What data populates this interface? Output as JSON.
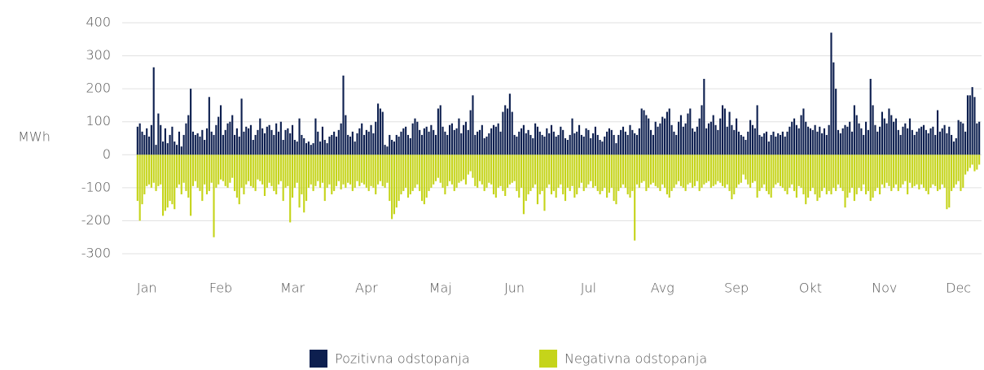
{
  "chart_data": {
    "type": "bar",
    "y_label": "MWh",
    "x": [
      1,
      2,
      3,
      4,
      5,
      6,
      7,
      8,
      9,
      10,
      11,
      12,
      13,
      14,
      15,
      16,
      17,
      18,
      19,
      20,
      21,
      22,
      23,
      24,
      25,
      26,
      27,
      28,
      29,
      30,
      31,
      32,
      33,
      34,
      35,
      36,
      37,
      38,
      39,
      40,
      41,
      42,
      43,
      44,
      45,
      46,
      47,
      48,
      49,
      50,
      51,
      52,
      53,
      54,
      55,
      56,
      57,
      58,
      59,
      60,
      61,
      62,
      63,
      64,
      65,
      66,
      67,
      68,
      69,
      70,
      71,
      72,
      73,
      74,
      75,
      76,
      77,
      78,
      79,
      80,
      81,
      82,
      83,
      84,
      85,
      86,
      87,
      88,
      89,
      90,
      91,
      92,
      93,
      94,
      95,
      96,
      97,
      98,
      99,
      100,
      101,
      102,
      103,
      104,
      105,
      106,
      107,
      108,
      109,
      110,
      111,
      112,
      113,
      114,
      115,
      116,
      117,
      118,
      119,
      120,
      121,
      122,
      123,
      124,
      125,
      126,
      127,
      128,
      129,
      130,
      131,
      132,
      133,
      134,
      135,
      136,
      137,
      138,
      139,
      140,
      141,
      142,
      143,
      144,
      145,
      146,
      147,
      148,
      149,
      150,
      151,
      152,
      153,
      154,
      155,
      156,
      157,
      158,
      159,
      160,
      161,
      162,
      163,
      164,
      165,
      166,
      167,
      168,
      169,
      170,
      171,
      172,
      173,
      174,
      175,
      176,
      177,
      178,
      179,
      180,
      181,
      182,
      183,
      184,
      185,
      186,
      187,
      188,
      189,
      190,
      191,
      192,
      193,
      194,
      195,
      196,
      197,
      198,
      199,
      200,
      201,
      202,
      203,
      204,
      205,
      206,
      207,
      208,
      209,
      210,
      211,
      212,
      213,
      214,
      215,
      216,
      217,
      218,
      219,
      220,
      221,
      222,
      223,
      224,
      225,
      226,
      227,
      228,
      229,
      230,
      231,
      232,
      233,
      234,
      235,
      236,
      237,
      238,
      239,
      240,
      241,
      242,
      243,
      244,
      245,
      246,
      247,
      248,
      249,
      250,
      251,
      252,
      253,
      254,
      255,
      256,
      257,
      258,
      259,
      260,
      261,
      262,
      263,
      264,
      265,
      266,
      267,
      268,
      269,
      270,
      271,
      272,
      273,
      274,
      275,
      276,
      277,
      278,
      279,
      280,
      281,
      282,
      283,
      284,
      285,
      286,
      287,
      288,
      289,
      290,
      291,
      292,
      293,
      294,
      295,
      296,
      297,
      298,
      299,
      300,
      301,
      302,
      303,
      304,
      305,
      306,
      307,
      308,
      309,
      310,
      311,
      312,
      313,
      314,
      315,
      316,
      317,
      318,
      319,
      320,
      321,
      322,
      323,
      324,
      325,
      326,
      327,
      328,
      329,
      330,
      331,
      332,
      333,
      334,
      335,
      336,
      337,
      338,
      339,
      340,
      341,
      342,
      343,
      344,
      345,
      346,
      347,
      348,
      349,
      350,
      351,
      352,
      353,
      354,
      355,
      356,
      357,
      358,
      359,
      360,
      361,
      362,
      363,
      364,
      365
    ],
    "xlim": [
      0,
      366
    ],
    "xticks": [
      {
        "value": 5,
        "label": "Jan"
      },
      {
        "value": 37,
        "label": "Feb"
      },
      {
        "value": 68,
        "label": "Mar"
      },
      {
        "value": 100,
        "label": "Apr"
      },
      {
        "value": 132,
        "label": "Maj"
      },
      {
        "value": 164,
        "label": "Jun"
      },
      {
        "value": 196,
        "label": "Jul"
      },
      {
        "value": 228,
        "label": "Avg"
      },
      {
        "value": 260,
        "label": "Sep"
      },
      {
        "value": 292,
        "label": "Okt"
      },
      {
        "value": 324,
        "label": "Nov"
      },
      {
        "value": 356,
        "label": "Dec"
      }
    ],
    "ylim": [
      -300,
      400
    ],
    "yticks": [
      400,
      300,
      200,
      100,
      0,
      -100,
      -200,
      -300
    ],
    "grid": true,
    "series": [
      {
        "name": "Pozitivna odstopanja",
        "color": "#0d1f4f",
        "values": [
          85,
          95,
          70,
          60,
          80,
          55,
          90,
          265,
          30,
          125,
          90,
          40,
          80,
          35,
          60,
          85,
          40,
          30,
          70,
          25,
          60,
          95,
          120,
          200,
          70,
          60,
          65,
          55,
          75,
          45,
          80,
          175,
          70,
          60,
          90,
          115,
          150,
          60,
          75,
          95,
          100,
          120,
          60,
          80,
          55,
          170,
          70,
          85,
          80,
          90,
          45,
          60,
          75,
          110,
          80,
          65,
          85,
          90,
          75,
          60,
          95,
          70,
          100,
          45,
          75,
          80,
          65,
          90,
          45,
          40,
          110,
          60,
          50,
          35,
          40,
          30,
          35,
          110,
          70,
          40,
          85,
          45,
          35,
          55,
          60,
          70,
          55,
          75,
          95,
          240,
          120,
          60,
          55,
          70,
          40,
          65,
          80,
          95,
          60,
          75,
          70,
          90,
          65,
          100,
          155,
          140,
          130,
          30,
          25,
          60,
          45,
          40,
          60,
          55,
          70,
          80,
          85,
          60,
          50,
          95,
          110,
          100,
          75,
          60,
          80,
          85,
          70,
          90,
          75,
          60,
          140,
          150,
          85,
          70,
          60,
          90,
          95,
          75,
          80,
          110,
          65,
          90,
          100,
          75,
          135,
          180,
          60,
          70,
          75,
          90,
          50,
          55,
          65,
          80,
          90,
          85,
          95,
          70,
          130,
          150,
          140,
          185,
          130,
          60,
          55,
          70,
          80,
          90,
          65,
          75,
          60,
          50,
          95,
          85,
          70,
          60,
          55,
          80,
          65,
          90,
          70,
          55,
          60,
          85,
          75,
          50,
          45,
          60,
          110,
          65,
          70,
          90,
          60,
          55,
          80,
          75,
          50,
          65,
          85,
          60,
          45,
          40,
          55,
          70,
          80,
          75,
          60,
          35,
          60,
          75,
          85,
          70,
          60,
          90,
          75,
          65,
          60,
          80,
          140,
          135,
          120,
          110,
          75,
          60,
          100,
          85,
          95,
          115,
          110,
          130,
          140,
          90,
          70,
          60,
          100,
          120,
          85,
          95,
          125,
          140,
          80,
          70,
          85,
          110,
          150,
          230,
          80,
          95,
          100,
          120,
          90,
          75,
          110,
          150,
          140,
          85,
          130,
          90,
          75,
          110,
          70,
          60,
          55,
          45,
          70,
          105,
          90,
          80,
          150,
          60,
          55,
          65,
          70,
          40,
          60,
          70,
          55,
          65,
          60,
          70,
          55,
          70,
          85,
          100,
          110,
          90,
          80,
          120,
          140,
          100,
          85,
          80,
          75,
          90,
          70,
          85,
          65,
          80,
          60,
          90,
          370,
          280,
          200,
          75,
          65,
          80,
          90,
          85,
          100,
          70,
          150,
          120,
          95,
          80,
          60,
          100,
          75,
          230,
          150,
          90,
          70,
          85,
          130,
          110,
          95,
          140,
          120,
          100,
          110,
          75,
          60,
          85,
          95,
          80,
          110,
          75,
          60,
          70,
          80,
          85,
          90,
          75,
          65,
          80,
          85,
          60,
          135,
          70,
          80,
          90,
          65,
          85,
          60,
          40,
          50,
          105,
          100,
          95,
          70,
          180,
          180,
          205,
          175,
          95,
          100
        ]
      },
      {
        "name": "Negativna odstopanja",
        "color": "#c5d41a",
        "values": [
          -140,
          -200,
          -150,
          -120,
          -95,
          -90,
          -100,
          -85,
          -110,
          -95,
          -90,
          -185,
          -170,
          -160,
          -140,
          -150,
          -165,
          -100,
          -90,
          -120,
          -85,
          -110,
          -130,
          -185,
          -95,
          -80,
          -100,
          -110,
          -140,
          -90,
          -120,
          -110,
          -85,
          -250,
          -100,
          -90,
          -75,
          -80,
          -95,
          -100,
          -85,
          -70,
          -110,
          -130,
          -150,
          -100,
          -120,
          -90,
          -80,
          -95,
          -100,
          -110,
          -75,
          -80,
          -90,
          -125,
          -100,
          -85,
          -95,
          -110,
          -120,
          -90,
          -80,
          -140,
          -100,
          -95,
          -205,
          -130,
          -100,
          -85,
          -160,
          -120,
          -175,
          -140,
          -100,
          -90,
          -110,
          -95,
          -80,
          -100,
          -85,
          -140,
          -100,
          -90,
          -120,
          -110,
          -95,
          -80,
          -105,
          -90,
          -100,
          -85,
          -90,
          -110,
          -100,
          -80,
          -95,
          -85,
          -90,
          -100,
          -110,
          -95,
          -100,
          -120,
          -90,
          -80,
          -95,
          -100,
          -85,
          -140,
          -195,
          -180,
          -160,
          -140,
          -120,
          -110,
          -100,
          -130,
          -120,
          -110,
          -100,
          -90,
          -110,
          -140,
          -150,
          -130,
          -110,
          -100,
          -90,
          -80,
          -70,
          -85,
          -100,
          -120,
          -95,
          -80,
          -90,
          -110,
          -100,
          -85,
          -80,
          -75,
          -90,
          -60,
          -50,
          -70,
          -95,
          -100,
          -80,
          -90,
          -110,
          -100,
          -85,
          -90,
          -120,
          -130,
          -100,
          -95,
          -110,
          -125,
          -100,
          -90,
          -85,
          -80,
          -110,
          -130,
          -100,
          -180,
          -140,
          -120,
          -110,
          -100,
          -90,
          -150,
          -120,
          -110,
          -170,
          -100,
          -90,
          -120,
          -110,
          -130,
          -100,
          -90,
          -120,
          -140,
          -100,
          -110,
          -95,
          -130,
          -120,
          -100,
          -85,
          -110,
          -100,
          -90,
          -80,
          -100,
          -95,
          -110,
          -120,
          -110,
          -100,
          -130,
          -115,
          -100,
          -140,
          -150,
          -110,
          -100,
          -90,
          -100,
          -120,
          -130,
          -110,
          -260,
          -90,
          -100,
          -85,
          -80,
          -110,
          -100,
          -90,
          -85,
          -95,
          -100,
          -110,
          -90,
          -100,
          -120,
          -130,
          -110,
          -100,
          -90,
          -80,
          -95,
          -100,
          -110,
          -90,
          -85,
          -100,
          -95,
          -80,
          -110,
          -100,
          -90,
          -85,
          -80,
          -100,
          -95,
          -90,
          -80,
          -85,
          -95,
          -100,
          -90,
          -110,
          -135,
          -120,
          -100,
          -90,
          -85,
          -60,
          -75,
          -90,
          -100,
          -85,
          -80,
          -130,
          -110,
          -100,
          -90,
          -110,
          -120,
          -130,
          -100,
          -90,
          -85,
          -95,
          -100,
          -110,
          -120,
          -100,
          -90,
          -110,
          -130,
          -95,
          -100,
          -120,
          -150,
          -130,
          -110,
          -100,
          -120,
          -140,
          -130,
          -110,
          -100,
          -120,
          -110,
          -120,
          -100,
          -110,
          -90,
          -100,
          -110,
          -160,
          -130,
          -115,
          -100,
          -140,
          -120,
          -100,
          -110,
          -90,
          -120,
          -110,
          -140,
          -130,
          -110,
          -100,
          -120,
          -90,
          -100,
          -85,
          -95,
          -110,
          -100,
          -90,
          -110,
          -100,
          -90,
          -80,
          -120,
          -85,
          -100,
          -95,
          -90,
          -105,
          -90,
          -100,
          -110,
          -120,
          -100,
          -90,
          -95,
          -110,
          -105,
          -90,
          -100,
          -165,
          -160,
          -110,
          -100,
          -90,
          -80,
          -110,
          -100,
          -60,
          -50,
          -40,
          -30,
          -50,
          -45,
          -30
        ]
      }
    ]
  }
}
